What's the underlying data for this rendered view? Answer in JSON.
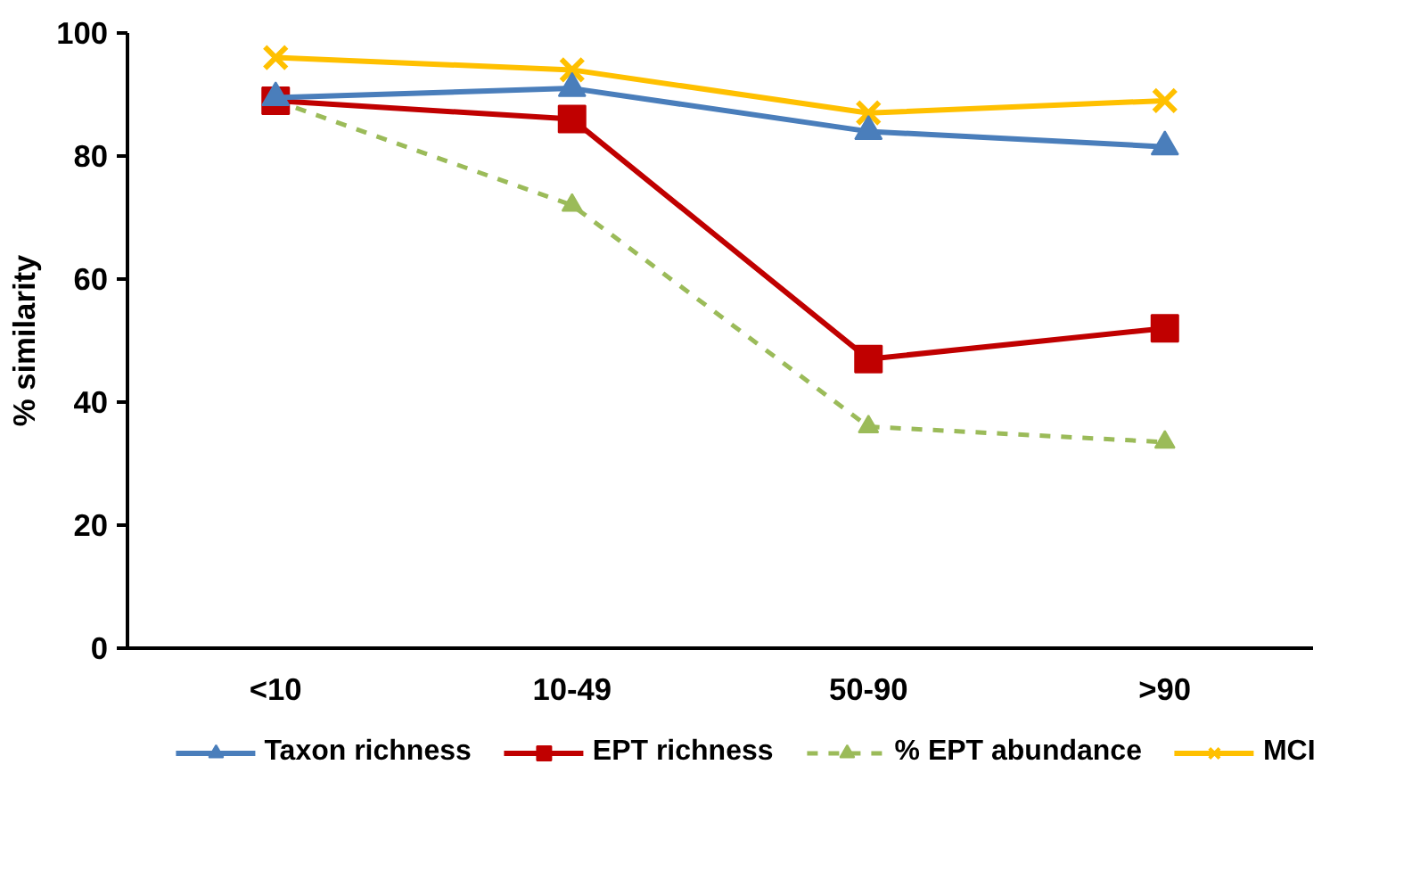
{
  "chart_data": {
    "type": "line",
    "ylabel": "% similarity",
    "categories": [
      "<10",
      "10-49",
      "50-90",
      ">90"
    ],
    "ylim": [
      0,
      100
    ],
    "yticks": [
      0,
      20,
      40,
      60,
      80,
      100
    ],
    "grid": false,
    "legend": "bottom",
    "series": [
      {
        "name": "Taxon richness",
        "color": "#4a7ebb",
        "values": [
          89.5,
          91,
          84,
          81.5
        ],
        "marker": "triangle",
        "line_style": "solid"
      },
      {
        "name": "EPT richness",
        "color": "#c00000",
        "values": [
          89,
          86,
          47,
          52
        ],
        "marker": "square",
        "line_style": "solid"
      },
      {
        "name": "% EPT abundance",
        "color": "#9bbb59",
        "values": [
          89,
          72,
          36,
          33.5
        ],
        "marker": "triangle",
        "line_style": "dashed"
      },
      {
        "name": "MCI",
        "color": "#ffc000",
        "values": [
          96,
          94,
          87,
          89
        ],
        "marker": "cross",
        "line_style": "solid"
      }
    ]
  }
}
